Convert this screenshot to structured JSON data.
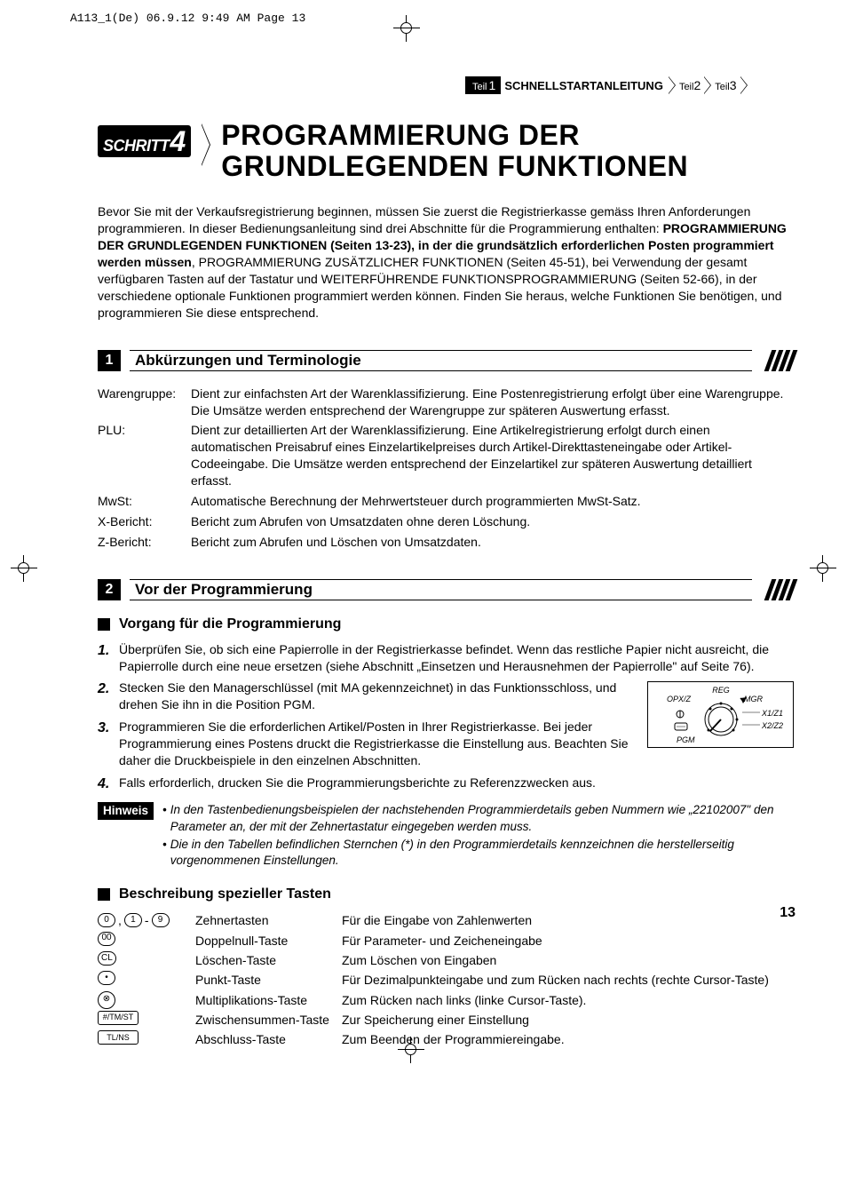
{
  "print_header": "A113_1(De)  06.9.12 9:49 AM  Page 13",
  "breadcrumb": {
    "teil1_prefix": "Teil",
    "teil1_num": "1",
    "title": "SCHNELLSTARTANLEITUNG",
    "teil2_prefix": "Teil",
    "teil2_num": "2",
    "teil3_prefix": "Teil",
    "teil3_num": "3"
  },
  "badge": {
    "word": "SCHRITT",
    "num": "4"
  },
  "main_title_l1": "PROGRAMMIERUNG DER",
  "main_title_l2": "GRUNDLEGENDEN FUNKTIONEN",
  "intro_before_bold": "Bevor Sie mit der Verkaufsregistrierung beginnen, müssen Sie zuerst die Registrierkasse gemäss Ihren Anforderungen programmieren. In dieser Bedienungsanleitung sind drei Abschnitte für die Programmierung enthalten: ",
  "intro_bold": "PROGRAMMIERUNG DER GRUNDLEGENDEN FUNKTIONEN (Seiten 13-23), in der die grundsätzlich erforderlichen Posten programmiert werden müssen",
  "intro_after_bold": ", PROGRAMMIERUNG ZUSÄTZLICHER FUNKTIONEN (Seiten 45-51), bei Verwendung der gesamt verfügbaren Tasten auf der Tastatur und WEITERFÜHRENDE FUNKTIONSPROGRAMMIERUNG (Seiten 52-66), in der verschiedene optionale Funktionen programmiert werden können. Finden Sie heraus, welche Funktionen Sie benötigen, und programmieren Sie diese entsprechend.",
  "sec1_num": "1",
  "sec1_title": "Abkürzungen und Terminologie",
  "defs": [
    {
      "term": "Warengruppe:",
      "text": "Dient zur einfachsten Art der Warenklassifizierung. Eine Postenregistrierung erfolgt über eine Warengruppe. Die Umsätze werden entsprechend der Warengruppe zur späteren Auswertung erfasst."
    },
    {
      "term": "PLU:",
      "text": "Dient zur detaillierten Art der Warenklassifizierung. Eine Artikelregistrierung erfolgt durch einen automatischen Preisabruf eines Einzelartikelpreises durch Artikel-Direkttasteneingabe oder Artikel-Codeeingabe. Die Umsätze werden entsprechend der Einzelartikel zur späteren Auswertung detailliert erfasst."
    },
    {
      "term": "MwSt:",
      "text": "Automatische Berechnung der Mehrwertsteuer durch programmierten MwSt-Satz."
    },
    {
      "term": "X-Bericht:",
      "text": "Bericht zum Abrufen von Umsatzdaten ohne deren Löschung."
    },
    {
      "term": "Z-Bericht:",
      "text": "Bericht zum Abrufen und Löschen von Umsatzdaten."
    }
  ],
  "sec2_num": "2",
  "sec2_title": "Vor der Programmierung",
  "sub1": "Vorgang für die Programmierung",
  "steps": [
    {
      "n": "1.",
      "text": "Überprüfen Sie, ob sich eine Papierrolle in der Registrierkasse befindet. Wenn das restliche Papier nicht ausreicht, die Papierrolle durch eine neue ersetzen (siehe Abschnitt „Einsetzen und Herausnehmen der Papierrolle\" auf Seite 76)."
    },
    {
      "n": "2.",
      "text": "Stecken Sie den Managerschlüssel (mit MA gekennzeichnet) in das Funktionsschloss, und drehen Sie ihn in die Position PGM."
    },
    {
      "n": "3.",
      "text": "Programmieren Sie die erforderlichen Artikel/Posten in Ihrer Registrierkasse. Bei jeder Programmierung eines Postens druckt die Registrierkasse die Einstellung aus. Beachten Sie daher die Druckbeispiele in den einzelnen Abschnitten."
    },
    {
      "n": "4.",
      "text": "Falls erforderlich, drucken Sie die Programmierungsberichte zu Referenzzwecken aus."
    }
  ],
  "mode_labels": {
    "reg": "REG",
    "opxz": "OPX/Z",
    "mgr": "MGR",
    "x1z1": "X1/Z1",
    "x2z2": "X2/Z2",
    "pgm": "PGM"
  },
  "hinweis_label": "Hinweis",
  "hinweis_lines": [
    "In den Tastenbedienungsbeispielen der nachstehenden Programmierdetails geben Nummern wie „22102007\" den Parameter an, der mit der Zehnertastatur eingegeben werden muss.",
    "Die in den Tabellen befindlichen Sternchen (*) in den Programmierdetails kennzeichnen die herstellerseitig vorgenommenen Einstellungen."
  ],
  "sub2": "Beschreibung spezieller Tasten",
  "keys": [
    {
      "sym": [
        "0",
        ",",
        "1",
        "-",
        "9"
      ],
      "sym_type": "digits",
      "name": "Zehnertasten",
      "desc": "Für die Eingabe von Zahlenwerten"
    },
    {
      "sym": [
        "00"
      ],
      "sym_type": "oval",
      "name": "Doppelnull-Taste",
      "desc": "Für Parameter- und Zeicheneingabe"
    },
    {
      "sym": [
        "CL"
      ],
      "sym_type": "oval",
      "name": "Löschen-Taste",
      "desc": "Zum Löschen von Eingaben"
    },
    {
      "sym": [
        "•"
      ],
      "sym_type": "oval",
      "name": "Punkt-Taste",
      "desc": "Für Dezimalpunkteingabe und zum Rücken nach rechts (rechte Cursor-Taste)"
    },
    {
      "sym": [
        "⊗"
      ],
      "sym_type": "circ",
      "name": "Multiplikations-Taste",
      "desc": "Zum Rücken nach links (linke Cursor-Taste)."
    },
    {
      "sym": [
        "#/TM/ST"
      ],
      "sym_type": "rect",
      "name": "Zwischensummen-Taste",
      "desc": "Zur Speicherung einer Einstellung"
    },
    {
      "sym": [
        "TL/NS"
      ],
      "sym_type": "rect",
      "name": "Abschluss-Taste",
      "desc": "Zum Beenden der Programmiereingabe."
    }
  ],
  "page_num": "13",
  "colors": {
    "black": "#000000",
    "white": "#ffffff"
  }
}
